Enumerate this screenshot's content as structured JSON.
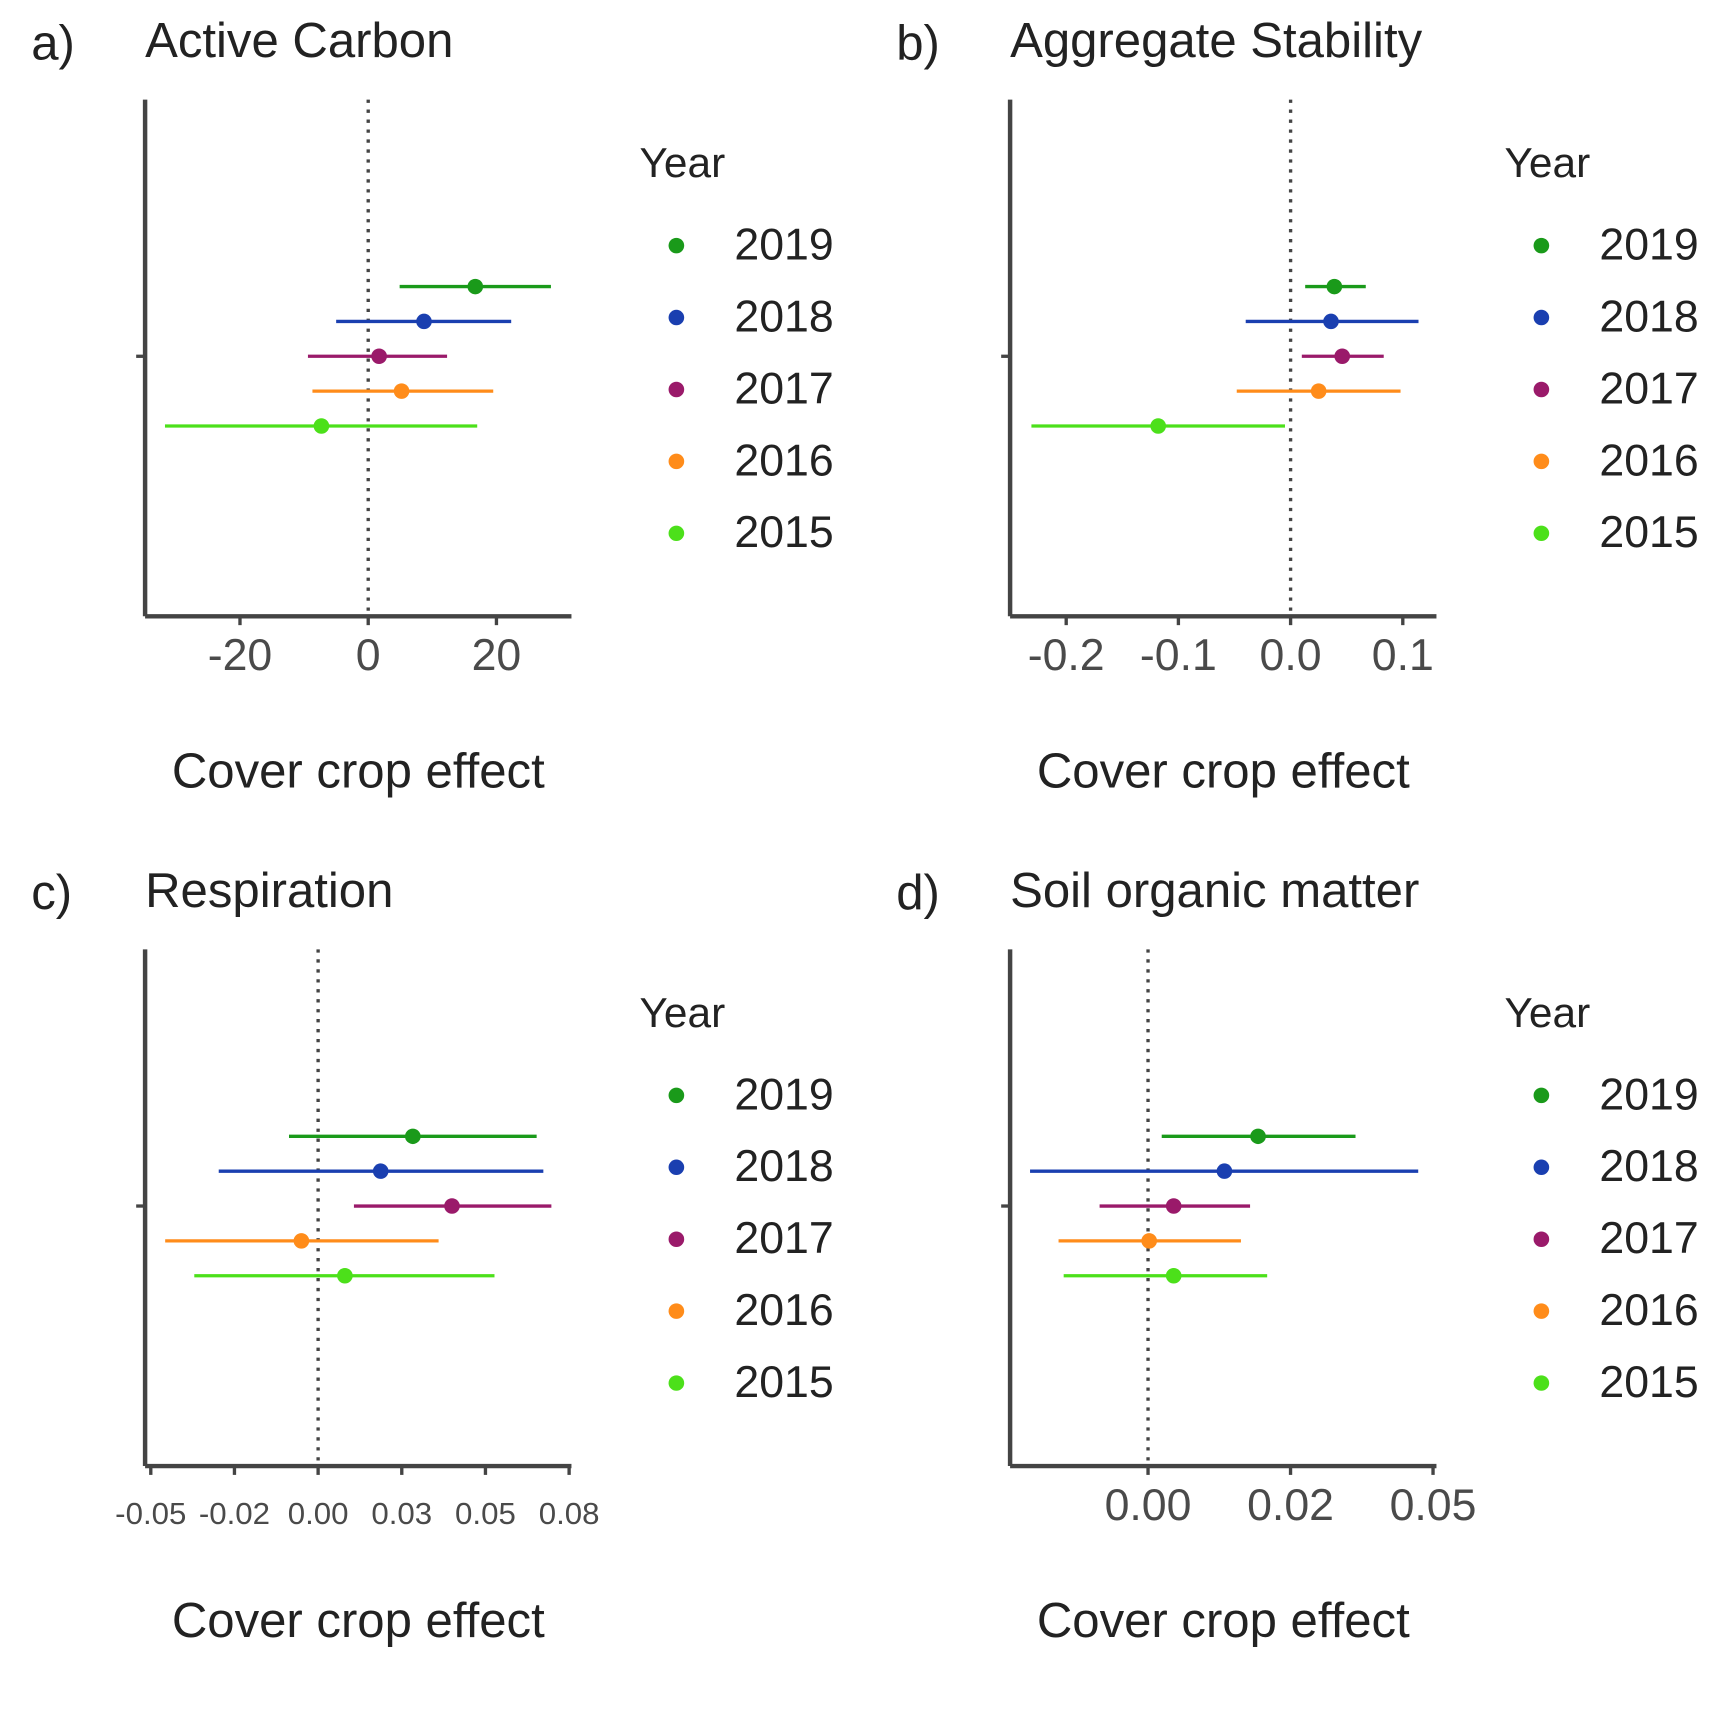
{
  "chart_data": [
    {
      "type": "forest",
      "label": "a)",
      "title": "Active Carbon",
      "xlabel": "Cover crop effect",
      "legend_title": "Year",
      "xlim": [
        -34.8,
        31.7
      ],
      "xticks": [
        -20,
        0,
        20
      ],
      "reference_line": 0,
      "series": [
        {
          "name": "2019",
          "color": "#1a9a1a",
          "values": [
            16.7
          ],
          "ci_low": [
            4.9
          ],
          "ci_high": [
            28.5
          ]
        },
        {
          "name": "2018",
          "color": "#1a3fb0",
          "values": [
            8.7
          ],
          "ci_low": [
            -5.0
          ],
          "ci_high": [
            22.3
          ]
        },
        {
          "name": "2017",
          "color": "#9a1a6a",
          "values": [
            1.7
          ],
          "ci_low": [
            -9.4
          ],
          "ci_high": [
            12.3
          ]
        },
        {
          "name": "2016",
          "color": "#ff8c1a",
          "values": [
            5.2
          ],
          "ci_low": [
            -8.7
          ],
          "ci_high": [
            19.5
          ]
        },
        {
          "name": "2015",
          "color": "#4ce01a",
          "values": [
            -7.3
          ],
          "ci_low": [
            -31.7
          ],
          "ci_high": [
            17.0
          ]
        }
      ]
    },
    {
      "type": "forest",
      "label": "b)",
      "title": "Aggregate Stability",
      "xlabel": "Cover crop effect",
      "legend_title": "Year",
      "xlim": [
        -0.25,
        0.13
      ],
      "xticks": [
        {
          "value": -0.2,
          "label": "-0.2"
        },
        {
          "value": -0.1,
          "label": "-0.1"
        },
        {
          "value": 0,
          "label": "0.0"
        },
        0.1
      ],
      "reference_line": 0,
      "series": [
        {
          "name": "2019",
          "color": "#1a9a1a",
          "values": [
            0.039
          ],
          "ci_low": [
            0.013
          ],
          "ci_high": [
            0.067
          ]
        },
        {
          "name": "2018",
          "color": "#1a3fb0",
          "values": [
            0.036
          ],
          "ci_low": [
            -0.04
          ],
          "ci_high": [
            0.114
          ]
        },
        {
          "name": "2017",
          "color": "#9a1a6a",
          "values": [
            0.046
          ],
          "ci_low": [
            0.01
          ],
          "ci_high": [
            0.083
          ]
        },
        {
          "name": "2016",
          "color": "#ff8c1a",
          "values": [
            0.025
          ],
          "ci_low": [
            -0.048
          ],
          "ci_high": [
            0.098
          ]
        },
        {
          "name": "2015",
          "color": "#4ce01a",
          "values": [
            -0.118
          ],
          "ci_low": [
            -0.231
          ],
          "ci_high": [
            -0.005
          ]
        }
      ]
    },
    {
      "type": "forest",
      "label": "c)",
      "title": "Respiration",
      "xlabel": "Cover crop effect",
      "legend_title": "Year",
      "xlim": [
        -0.0517,
        0.0757
      ],
      "xticks": [
        {
          "value": -0.05,
          "label": "-0.05"
        },
        {
          "value": -0.025,
          "label": "-0.02"
        },
        {
          "value": 0,
          "label": "0.00"
        },
        {
          "value": 0.025,
          "label": "0.03"
        },
        {
          "value": 0.05,
          "label": "0.05"
        },
        {
          "value": 0.075,
          "label": "0.08"
        }
      ],
      "reference_line": 0,
      "series": [
        {
          "name": "2019",
          "color": "#1a9a1a",
          "values": [
            0.0283
          ],
          "ci_low": [
            -0.0087
          ],
          "ci_high": [
            0.0653
          ]
        },
        {
          "name": "2018",
          "color": "#1a3fb0",
          "values": [
            0.0187
          ],
          "ci_low": [
            -0.0297
          ],
          "ci_high": [
            0.0673
          ]
        },
        {
          "name": "2017",
          "color": "#9a1a6a",
          "values": [
            0.04
          ],
          "ci_low": [
            0.0107
          ],
          "ci_high": [
            0.0697
          ]
        },
        {
          "name": "2016",
          "color": "#ff8c1a",
          "values": [
            -0.005
          ],
          "ci_low": [
            -0.0457
          ],
          "ci_high": [
            0.036
          ]
        },
        {
          "name": "2015",
          "color": "#4ce01a",
          "values": [
            0.008
          ],
          "ci_low": [
            -0.037
          ],
          "ci_high": [
            0.0527
          ]
        }
      ]
    },
    {
      "type": "forest",
      "label": "d)",
      "title": "Soil organic matter",
      "xlabel": "Cover crop effect",
      "legend_title": "Year",
      "xlim": [
        -0.0242,
        0.0506
      ],
      "xticks": [
        {
          "value": 0,
          "label": "0.00"
        },
        {
          "value": 0.025,
          "label": "0.02"
        },
        {
          "value": 0.05,
          "label": "0.05"
        }
      ],
      "reference_line": 0,
      "series": [
        {
          "name": "2019",
          "color": "#1a9a1a",
          "values": [
            0.0193
          ],
          "ci_low": [
            0.0024
          ],
          "ci_high": [
            0.0364
          ]
        },
        {
          "name": "2018",
          "color": "#1a3fb0",
          "values": [
            0.0134
          ],
          "ci_low": [
            -0.0207
          ],
          "ci_high": [
            0.0474
          ]
        },
        {
          "name": "2017",
          "color": "#9a1a6a",
          "values": [
            0.0045
          ],
          "ci_low": [
            -0.0085
          ],
          "ci_high": [
            0.0179
          ]
        },
        {
          "name": "2016",
          "color": "#ff8c1a",
          "values": [
            0.0002
          ],
          "ci_low": [
            -0.0157
          ],
          "ci_high": [
            0.0163
          ]
        },
        {
          "name": "2015",
          "color": "#4ce01a",
          "values": [
            0.0045
          ],
          "ci_low": [
            -0.0148
          ],
          "ci_high": [
            0.0209
          ]
        }
      ]
    }
  ]
}
